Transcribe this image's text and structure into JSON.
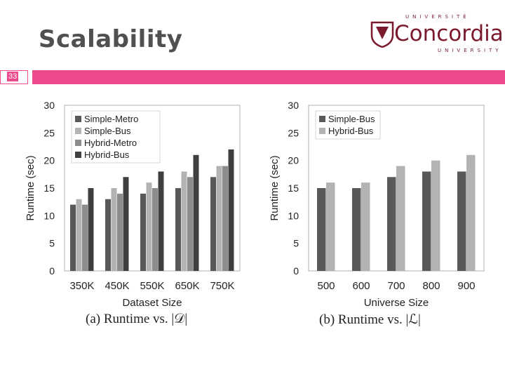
{
  "slide": {
    "title": "Scalability",
    "page_number": "33",
    "logo": {
      "top": "UNIVERSITÉ",
      "main": "Concordia",
      "bottom": "UNIVERSITY"
    },
    "accent_color": "#ec4a8c"
  },
  "chart_data": [
    {
      "type": "bar",
      "caption": "(a) Runtime vs. |𝒟|",
      "xlabel": "Dataset Size",
      "ylabel": "Runtime (sec)",
      "ylim": [
        0,
        30
      ],
      "yticks": [
        0,
        5,
        10,
        15,
        20,
        25,
        30
      ],
      "grid": false,
      "legend": "top-left",
      "categories": [
        "350K",
        "450K",
        "550K",
        "650K",
        "750K"
      ],
      "series": [
        {
          "name": "Simple-Metro",
          "color": "#595959",
          "values": [
            12,
            13,
            14,
            15,
            17
          ]
        },
        {
          "name": "Simple-Bus",
          "color": "#b3b3b3",
          "values": [
            13,
            15,
            16,
            18,
            19
          ]
        },
        {
          "name": "Hybrid-Metro",
          "color": "#8c8c8c",
          "values": [
            12,
            14,
            15,
            17,
            19
          ]
        },
        {
          "name": "Hybrid-Bus",
          "color": "#3f3f3f",
          "values": [
            15,
            17,
            18,
            21,
            22
          ]
        }
      ]
    },
    {
      "type": "bar",
      "caption": "(b) Runtime vs. |ℒ|",
      "xlabel": "Universe Size",
      "ylabel": "Runtime (sec)",
      "ylim": [
        0,
        30
      ],
      "yticks": [
        0,
        5,
        10,
        15,
        20,
        25,
        30
      ],
      "grid": false,
      "legend": "top-left",
      "categories": [
        "500",
        "600",
        "700",
        "800",
        "900"
      ],
      "series": [
        {
          "name": "Simple-Bus",
          "color": "#595959",
          "values": [
            15,
            15,
            17,
            18,
            18
          ]
        },
        {
          "name": "Hybrid-Bus",
          "color": "#b3b3b3",
          "values": [
            16,
            16,
            19,
            20,
            21
          ]
        }
      ]
    }
  ]
}
